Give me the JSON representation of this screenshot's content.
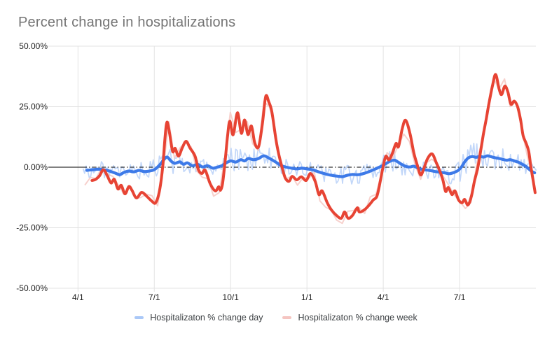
{
  "chart_data": {
    "type": "line",
    "title": "Percent change in hospitalizations",
    "title_color": "#757575",
    "axis_label_color": "#222222",
    "legend_text_color": "#3c4043",
    "grid_color": "#e3e3e3",
    "zero_line_color": "#000000",
    "background_color": "#ffffff",
    "x_axis": {
      "domain_months": [
        -1,
        18
      ],
      "ticks": [
        {
          "t": 0,
          "label": "4/1"
        },
        {
          "t": 3,
          "label": "7/1"
        },
        {
          "t": 6,
          "label": "10/1"
        },
        {
          "t": 9,
          "label": "1/1"
        },
        {
          "t": 12,
          "label": "4/1"
        },
        {
          "t": 15,
          "label": "7/1"
        }
      ]
    },
    "y_axis": {
      "min": -50,
      "max": 50,
      "ticks": [
        {
          "v": 50,
          "label": "50.00%"
        },
        {
          "v": 25,
          "label": "25.00%"
        },
        {
          "v": 0,
          "label": "0.00%"
        },
        {
          "v": -25,
          "label": "-25.00%"
        },
        {
          "v": -50,
          "label": "-50.00%"
        }
      ]
    },
    "series": [
      {
        "name": "Hospitalizaton % change day",
        "color_raw": "#aac8f7",
        "color_trend": "#3d7ae8",
        "trend": [
          [
            0.35,
            -1.3
          ],
          [
            0.6,
            -1.0
          ],
          [
            0.85,
            -0.8
          ],
          [
            1.1,
            -1.2
          ],
          [
            1.3,
            -1.8
          ],
          [
            1.5,
            -2.6
          ],
          [
            1.65,
            -3.1
          ],
          [
            1.8,
            -2.2
          ],
          [
            2.0,
            -1.6
          ],
          [
            2.2,
            -1.9
          ],
          [
            2.4,
            -1.3
          ],
          [
            2.6,
            -1.8
          ],
          [
            2.8,
            -1.6
          ],
          [
            3.0,
            -1.0
          ],
          [
            3.2,
            0.8
          ],
          [
            3.35,
            2.8
          ],
          [
            3.5,
            4.2
          ],
          [
            3.65,
            2.6
          ],
          [
            3.8,
            1.6
          ],
          [
            4.0,
            2.2
          ],
          [
            4.15,
            1.2
          ],
          [
            4.3,
            1.8
          ],
          [
            4.5,
            0.6
          ],
          [
            4.7,
            1.2
          ],
          [
            4.9,
            0.1
          ],
          [
            5.1,
            0.6
          ],
          [
            5.3,
            -0.4
          ],
          [
            5.5,
            0.1
          ],
          [
            5.65,
            0.6
          ],
          [
            5.8,
            1.6
          ],
          [
            6.0,
            2.6
          ],
          [
            6.2,
            2.1
          ],
          [
            6.4,
            3.1
          ],
          [
            6.55,
            2.6
          ],
          [
            6.7,
            3.6
          ],
          [
            6.9,
            3.1
          ],
          [
            7.1,
            3.6
          ],
          [
            7.3,
            4.7
          ],
          [
            7.5,
            3.8
          ],
          [
            7.7,
            2.6
          ],
          [
            7.85,
            1.6
          ],
          [
            8.0,
            0.6
          ],
          [
            8.2,
            0.0
          ],
          [
            8.4,
            -0.4
          ],
          [
            8.6,
            -0.7
          ],
          [
            8.8,
            -0.4
          ],
          [
            9.0,
            -0.7
          ],
          [
            9.2,
            -1.0
          ],
          [
            9.4,
            -1.7
          ],
          [
            9.6,
            -2.4
          ],
          [
            9.8,
            -3.0
          ],
          [
            10.0,
            -3.4
          ],
          [
            10.2,
            -3.7
          ],
          [
            10.4,
            -3.9
          ],
          [
            10.6,
            -3.3
          ],
          [
            10.8,
            -3.0
          ],
          [
            11.0,
            -3.1
          ],
          [
            11.2,
            -2.7
          ],
          [
            11.45,
            -1.8
          ],
          [
            11.65,
            -0.9
          ],
          [
            11.8,
            -0.2
          ],
          [
            12.0,
            0.8
          ],
          [
            12.15,
            1.8
          ],
          [
            12.3,
            2.6
          ],
          [
            12.45,
            2.9
          ],
          [
            12.6,
            2.0
          ],
          [
            12.75,
            1.0
          ],
          [
            12.9,
            0.3
          ],
          [
            13.05,
            0.1
          ],
          [
            13.2,
            0.4
          ],
          [
            13.35,
            -0.3
          ],
          [
            13.5,
            -0.8
          ],
          [
            13.65,
            -1.1
          ],
          [
            13.8,
            -1.3
          ],
          [
            14.0,
            -1.7
          ],
          [
            14.2,
            -2.0
          ],
          [
            14.4,
            -2.3
          ],
          [
            14.6,
            -2.7
          ],
          [
            14.8,
            -2.1
          ],
          [
            14.95,
            -1.3
          ],
          [
            15.08,
            0.2
          ],
          [
            15.2,
            2.2
          ],
          [
            15.35,
            3.9
          ],
          [
            15.5,
            4.4
          ],
          [
            15.65,
            4.1
          ],
          [
            15.8,
            4.5
          ],
          [
            15.95,
            4.2
          ],
          [
            16.1,
            4.7
          ],
          [
            16.25,
            4.3
          ],
          [
            16.4,
            3.9
          ],
          [
            16.55,
            3.6
          ],
          [
            16.7,
            3.2
          ],
          [
            16.85,
            2.9
          ],
          [
            17.0,
            3.1
          ],
          [
            17.15,
            2.6
          ],
          [
            17.3,
            2.1
          ],
          [
            17.45,
            1.3
          ],
          [
            17.6,
            0.4
          ],
          [
            17.72,
            -0.7
          ],
          [
            17.85,
            -1.8
          ],
          [
            17.95,
            -2.3
          ]
        ],
        "noise_envelope": [
          [
            0.25,
            3.5
          ],
          [
            1.0,
            3.2
          ],
          [
            2.0,
            3.2
          ],
          [
            3.0,
            4.5
          ],
          [
            3.5,
            5.5
          ],
          [
            4.0,
            4.5
          ],
          [
            4.5,
            3.8
          ],
          [
            5.0,
            3.2
          ],
          [
            5.5,
            4.5
          ],
          [
            6.0,
            6.0
          ],
          [
            6.5,
            5.5
          ],
          [
            7.0,
            6.0
          ],
          [
            7.5,
            5.0
          ],
          [
            8.0,
            3.8
          ],
          [
            8.5,
            3.0
          ],
          [
            9.0,
            3.2
          ],
          [
            9.5,
            3.0
          ],
          [
            10.0,
            3.8
          ],
          [
            10.5,
            4.2
          ],
          [
            11.0,
            3.8
          ],
          [
            11.5,
            3.2
          ],
          [
            12.0,
            4.2
          ],
          [
            12.5,
            5.0
          ],
          [
            13.0,
            4.2
          ],
          [
            13.5,
            3.4
          ],
          [
            14.0,
            3.8
          ],
          [
            14.5,
            4.6
          ],
          [
            15.0,
            5.5
          ],
          [
            15.5,
            6.0
          ],
          [
            16.0,
            5.5
          ],
          [
            16.5,
            5.0
          ],
          [
            17.0,
            4.2
          ],
          [
            17.5,
            3.4
          ],
          [
            18.0,
            3.0
          ]
        ]
      },
      {
        "name": "Hospitalizaton % change week",
        "color_raw": "#f5c5c1",
        "color_trend": "#e74434",
        "trend": [
          [
            0.55,
            -5.5
          ],
          [
            0.7,
            -5.0
          ],
          [
            0.85,
            -3.5
          ],
          [
            1.0,
            -1.0
          ],
          [
            1.15,
            -3.5
          ],
          [
            1.3,
            -6.5
          ],
          [
            1.43,
            -5.0
          ],
          [
            1.57,
            -9.0
          ],
          [
            1.7,
            -7.5
          ],
          [
            1.85,
            -11.0
          ],
          [
            2.0,
            -8.0
          ],
          [
            2.12,
            -9.5
          ],
          [
            2.3,
            -12.7
          ],
          [
            2.5,
            -10.4
          ],
          [
            2.7,
            -12.0
          ],
          [
            2.9,
            -14.0
          ],
          [
            3.05,
            -14.7
          ],
          [
            3.2,
            -10.0
          ],
          [
            3.33,
            0.0
          ],
          [
            3.42,
            12.0
          ],
          [
            3.5,
            18.6
          ],
          [
            3.6,
            14.0
          ],
          [
            3.72,
            6.5
          ],
          [
            3.82,
            7.8
          ],
          [
            3.95,
            4.6
          ],
          [
            4.1,
            8.0
          ],
          [
            4.25,
            10.7
          ],
          [
            4.4,
            8.0
          ],
          [
            4.6,
            4.6
          ],
          [
            4.73,
            -0.9
          ],
          [
            4.87,
            -2.6
          ],
          [
            5.0,
            -1.2
          ],
          [
            5.2,
            -6.9
          ],
          [
            5.4,
            -9.8
          ],
          [
            5.53,
            -8.1
          ],
          [
            5.6,
            -9.5
          ],
          [
            5.68,
            -7.0
          ],
          [
            5.78,
            2.0
          ],
          [
            5.88,
            13.0
          ],
          [
            5.97,
            19.0
          ],
          [
            6.1,
            13.4
          ],
          [
            6.27,
            22.5
          ],
          [
            6.42,
            14.0
          ],
          [
            6.55,
            19.5
          ],
          [
            6.68,
            13.5
          ],
          [
            6.82,
            17.0
          ],
          [
            6.95,
            10.0
          ],
          [
            7.1,
            8.5
          ],
          [
            7.25,
            18.0
          ],
          [
            7.38,
            29.2
          ],
          [
            7.5,
            27.0
          ],
          [
            7.62,
            23.0
          ],
          [
            7.78,
            11.5
          ],
          [
            7.9,
            5.0
          ],
          [
            8.02,
            0.0
          ],
          [
            8.15,
            -4.5
          ],
          [
            8.3,
            -5.8
          ],
          [
            8.42,
            -3.8
          ],
          [
            8.6,
            -5.2
          ],
          [
            8.78,
            -4.0
          ],
          [
            8.97,
            -5.5
          ],
          [
            9.14,
            -2.6
          ],
          [
            9.33,
            -6.0
          ],
          [
            9.47,
            -11.3
          ],
          [
            9.6,
            -9.8
          ],
          [
            9.8,
            -14.7
          ],
          [
            9.96,
            -17.6
          ],
          [
            10.16,
            -19.9
          ],
          [
            10.35,
            -21.1
          ],
          [
            10.48,
            -18.5
          ],
          [
            10.62,
            -21.1
          ],
          [
            10.79,
            -19.9
          ],
          [
            10.98,
            -16.8
          ],
          [
            11.06,
            -18.5
          ],
          [
            11.26,
            -17.6
          ],
          [
            11.45,
            -15.6
          ],
          [
            11.61,
            -13.5
          ],
          [
            11.75,
            -12.0
          ],
          [
            11.88,
            -6.0
          ],
          [
            11.98,
            -0.5
          ],
          [
            12.1,
            4.5
          ],
          [
            12.22,
            3.0
          ],
          [
            12.35,
            5.5
          ],
          [
            12.5,
            9.8
          ],
          [
            12.6,
            8.5
          ],
          [
            12.75,
            16.0
          ],
          [
            12.88,
            19.4
          ],
          [
            13.05,
            14.0
          ],
          [
            13.2,
            6.0
          ],
          [
            13.35,
            0.5
          ],
          [
            13.47,
            -3.2
          ],
          [
            13.58,
            -1.0
          ],
          [
            13.74,
            3.5
          ],
          [
            13.92,
            5.5
          ],
          [
            14.08,
            2.0
          ],
          [
            14.22,
            -1.5
          ],
          [
            14.35,
            -5.5
          ],
          [
            14.45,
            -10.0
          ],
          [
            14.56,
            -8.4
          ],
          [
            14.7,
            -11.3
          ],
          [
            14.82,
            -9.8
          ],
          [
            14.96,
            -13.5
          ],
          [
            15.1,
            -14.7
          ],
          [
            15.2,
            -13.3
          ],
          [
            15.33,
            -15.6
          ],
          [
            15.47,
            -11.8
          ],
          [
            15.58,
            -6.0
          ],
          [
            15.72,
            0.0
          ],
          [
            15.85,
            8.0
          ],
          [
            15.95,
            14.5
          ],
          [
            16.05,
            20.0
          ],
          [
            16.15,
            26.0
          ],
          [
            16.3,
            34.0
          ],
          [
            16.42,
            38.3
          ],
          [
            16.55,
            32.5
          ],
          [
            16.65,
            30.0
          ],
          [
            16.78,
            33.5
          ],
          [
            16.9,
            31.0
          ],
          [
            17.02,
            26.0
          ],
          [
            17.15,
            27.3
          ],
          [
            17.28,
            25.0
          ],
          [
            17.4,
            19.5
          ],
          [
            17.5,
            13.0
          ],
          [
            17.62,
            9.8
          ],
          [
            17.72,
            6.5
          ],
          [
            17.8,
            0.5
          ],
          [
            17.9,
            -6.0
          ],
          [
            17.97,
            -10.5
          ]
        ],
        "noise_envelope": [
          [
            0.4,
            2.5
          ],
          [
            1.0,
            2.8
          ],
          [
            2.0,
            3.0
          ],
          [
            3.0,
            3.5
          ],
          [
            3.45,
            8.0
          ],
          [
            4.0,
            3.5
          ],
          [
            5.0,
            3.5
          ],
          [
            5.9,
            5.0
          ],
          [
            6.4,
            5.5
          ],
          [
            7.0,
            4.5
          ],
          [
            7.4,
            4.5
          ],
          [
            8.0,
            3.0
          ],
          [
            9.0,
            3.0
          ],
          [
            10.0,
            3.8
          ],
          [
            10.6,
            4.2
          ],
          [
            11.2,
            3.4
          ],
          [
            12.0,
            3.0
          ],
          [
            12.9,
            4.5
          ],
          [
            13.5,
            3.2
          ],
          [
            14.5,
            3.8
          ],
          [
            15.1,
            3.2
          ],
          [
            15.8,
            4.0
          ],
          [
            16.45,
            5.5
          ],
          [
            16.9,
            4.5
          ],
          [
            17.3,
            3.8
          ],
          [
            17.95,
            4.0
          ]
        ]
      }
    ]
  }
}
